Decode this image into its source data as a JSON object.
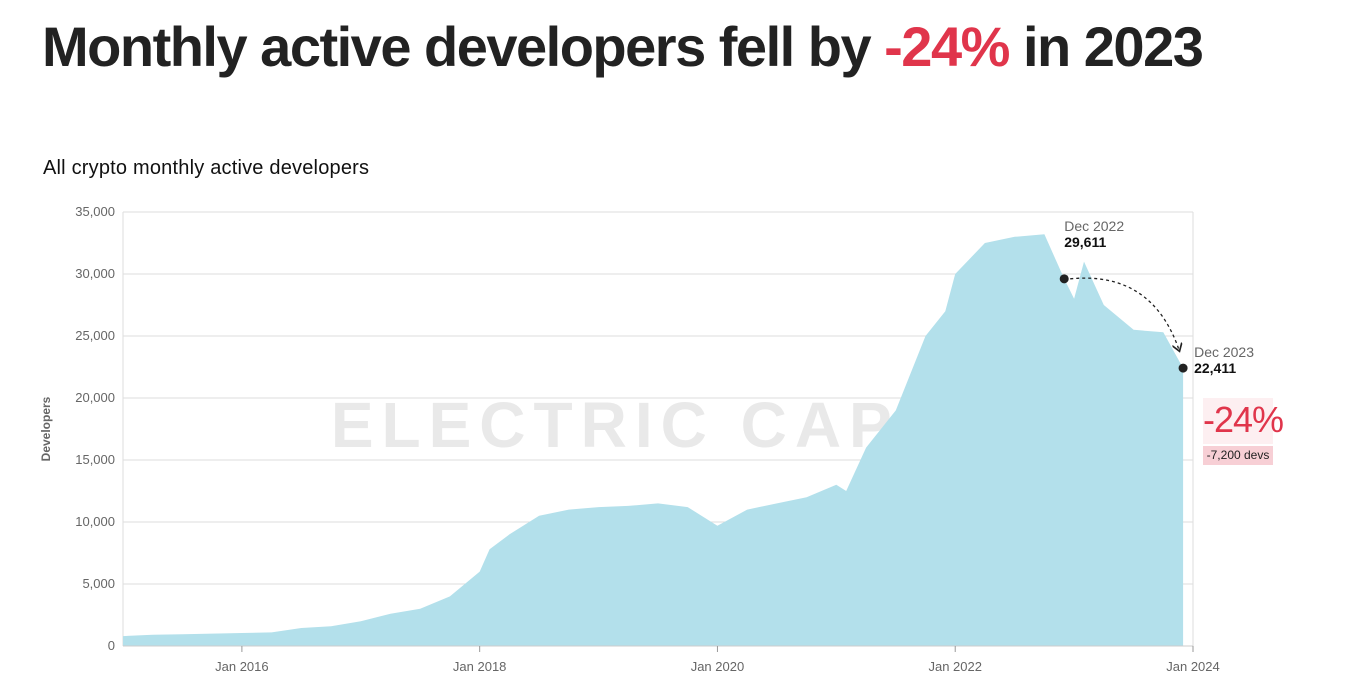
{
  "headline": {
    "prefix": "Monthly active developers fell by ",
    "highlight": "-24%",
    "suffix": " in 2023",
    "highlight_color": "#e0354b"
  },
  "chart_data": {
    "type": "area",
    "title": "All crypto monthly active developers",
    "xlabel": "",
    "ylabel": "Developers",
    "ylim": [
      0,
      35000
    ],
    "xlim": [
      "2015-01",
      "2024-01"
    ],
    "y_ticks": [
      "0",
      "5,000",
      "10,000",
      "15,000",
      "20,000",
      "25,000",
      "30,000",
      "35,000"
    ],
    "x_ticks": [
      "Jan 2016",
      "Jan 2018",
      "Jan 2020",
      "Jan 2022",
      "Jan 2024"
    ],
    "grid": "horizontal",
    "watermark": "ELECTRIC CAPITAL",
    "fill_color": "#b3e0eb",
    "series": [
      {
        "x": [
          "2015-01",
          "2015-04",
          "2015-07",
          "2015-10",
          "2016-01",
          "2016-04",
          "2016-07",
          "2016-10",
          "2017-01",
          "2017-04",
          "2017-07",
          "2017-10",
          "2018-01",
          "2018-02",
          "2018-04",
          "2018-07",
          "2018-10",
          "2019-01",
          "2019-04",
          "2019-07",
          "2019-10",
          "2020-01",
          "2020-04",
          "2020-07",
          "2020-10",
          "2021-01",
          "2021-02",
          "2021-04",
          "2021-07",
          "2021-10",
          "2021-12",
          "2022-01",
          "2022-04",
          "2022-07",
          "2022-10",
          "2022-12",
          "2023-01",
          "2023-02",
          "2023-04",
          "2023-07",
          "2023-10",
          "2023-12"
        ],
        "y": [
          800,
          900,
          950,
          1000,
          1050,
          1100,
          1450,
          1600,
          2000,
          2600,
          3000,
          4000,
          6000,
          7800,
          9000,
          10500,
          11000,
          11200,
          11300,
          11500,
          11200,
          9700,
          11000,
          11500,
          12000,
          13000,
          12500,
          16000,
          19000,
          25000,
          27000,
          30000,
          32500,
          33000,
          33200,
          29611,
          28000,
          31000,
          27500,
          25500,
          25300,
          22411
        ]
      }
    ],
    "annotations": [
      {
        "x": "2022-12",
        "y": 29611,
        "date": "Dec 2022",
        "value": "29,611"
      },
      {
        "x": "2023-12",
        "y": 22411,
        "date": "Dec 2023",
        "value": "22,411"
      }
    ],
    "change": {
      "percent": "-24%",
      "delta": "-7,200 devs"
    }
  }
}
